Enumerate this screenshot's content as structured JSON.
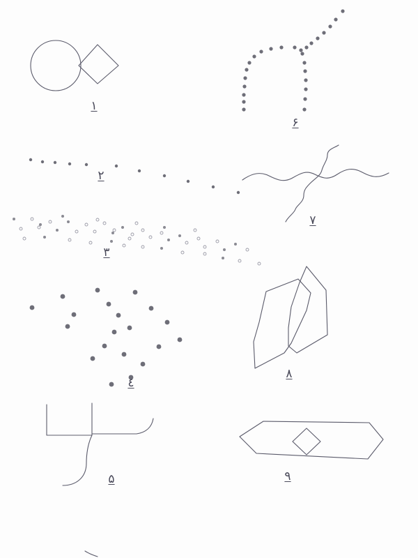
{
  "figures": [
    {
      "id": "fig-1",
      "label": "١"
    },
    {
      "id": "fig-2",
      "label": "٢"
    },
    {
      "id": "fig-3",
      "label": "٣"
    },
    {
      "id": "fig-4",
      "label": "٤"
    },
    {
      "id": "fig-5",
      "label": "۵"
    },
    {
      "id": "fig-6",
      "label": "۶"
    },
    {
      "id": "fig-7",
      "label": "٧"
    },
    {
      "id": "fig-8",
      "label": "٨"
    },
    {
      "id": "fig-9",
      "label": "٩"
    }
  ],
  "colors": {
    "ink": "#5a5a6a",
    "dots": "#8a8a92",
    "paper": "#fdfdfd"
  }
}
